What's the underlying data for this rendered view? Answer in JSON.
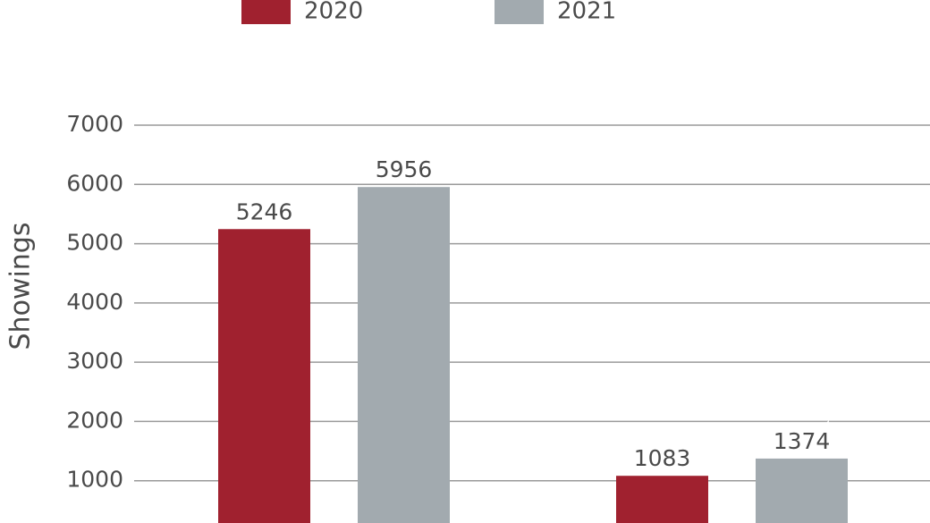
{
  "chart_data": {
    "type": "bar",
    "y_label": "Showings",
    "categories": [
      null,
      null
    ],
    "series": [
      {
        "name": "2020",
        "color": "#a0212f",
        "values": [
          5246,
          1083
        ]
      },
      {
        "name": "2021",
        "color": "#a2aaaf",
        "values": [
          5956,
          1374
        ]
      }
    ],
    "ylim": [
      0,
      7000
    ],
    "yticks": [
      1000,
      2000,
      3000,
      4000,
      5000,
      6000,
      7000
    ],
    "grid": true,
    "legend": "top"
  }
}
